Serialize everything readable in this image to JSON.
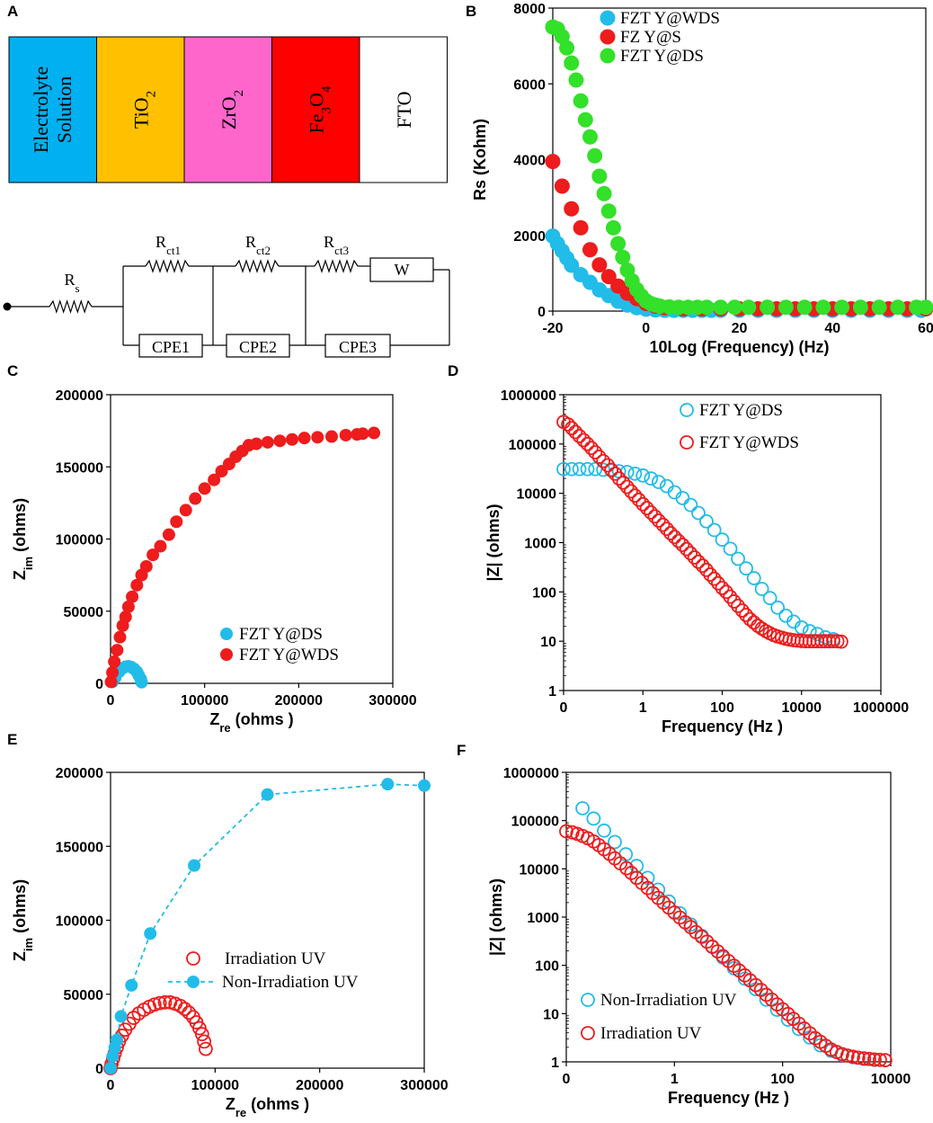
{
  "colors": {
    "blue": "#22bce9",
    "red": "#ee1c1c",
    "green": "#33e02a",
    "electrolyte": "#00b0f0",
    "tio2": "#ffc000",
    "zro2": "#ff66cc",
    "fe3o4": "#ff0000",
    "fto": "#ffffff"
  },
  "panel_labels": [
    "A",
    "B",
    "C",
    "D",
    "E",
    "F"
  ],
  "diagram": {
    "layers": [
      {
        "text": "Electrolyte Solution",
        "lines": [
          "Electrolyte",
          "Solution"
        ],
        "color": "#00b0f0"
      },
      {
        "text": "TiO2",
        "base": "TiO",
        "sub": "2",
        "color": "#ffc000"
      },
      {
        "text": "ZrO2",
        "base": "ZrO",
        "sub": "2",
        "color": "#ff66cc"
      },
      {
        "text": "Fe3O4",
        "base": "Fe",
        "sub": "3",
        "mid": "O",
        "sub2": "4",
        "color": "#ff0000"
      },
      {
        "text": "FTO",
        "base": "FTO",
        "color": "#ffffff"
      }
    ],
    "circuit": {
      "rs": {
        "base": "R",
        "sub": "s"
      },
      "rct1": {
        "base": "R",
        "sub": "ct1"
      },
      "rct2": {
        "base": "R",
        "sub": "ct2"
      },
      "rct3": {
        "base": "R",
        "sub": "ct3"
      },
      "w": "W",
      "cpe": [
        "CPE1",
        "CPE2",
        "CPE3"
      ]
    }
  },
  "chart_data": [
    {
      "id": "B",
      "type": "scatter",
      "title": "",
      "xlabel": "10Log (Frequency) (Hz)",
      "ylabel": "Rs (Kohm)",
      "xlim": [
        -20,
        60
      ],
      "ylim": [
        0,
        8000
      ],
      "xticks": [
        -20,
        0,
        20,
        40,
        60
      ],
      "yticks": [
        0,
        2000,
        4000,
        6000,
        8000
      ],
      "legend": "top-left",
      "series": [
        {
          "name": "FZT Y@WDS",
          "color": "#22bce9",
          "x": [
            -20,
            -19,
            -18,
            -17,
            -16,
            -14,
            -12,
            -10,
            -8,
            -6,
            -4,
            -2,
            0,
            2,
            4,
            6,
            8,
            10,
            12,
            14,
            16,
            20,
            24,
            28,
            32,
            36,
            40,
            44,
            48,
            52,
            56,
            59
          ],
          "y": [
            1980,
            1780,
            1590,
            1400,
            1210,
            960,
            760,
            560,
            410,
            260,
            160,
            90,
            50,
            30,
            20,
            20,
            20,
            20,
            20,
            20,
            20,
            20,
            20,
            20,
            20,
            20,
            20,
            20,
            20,
            20,
            20,
            20
          ]
        },
        {
          "name": "FZ Y@S",
          "color": "#ee1c1c",
          "x": [
            -20,
            -18,
            -16,
            -14,
            -12,
            -10,
            -8,
            -6,
            -4,
            -2,
            0,
            2,
            4,
            8,
            12,
            16,
            20,
            24,
            28,
            32,
            36,
            40,
            44,
            48,
            52,
            56,
            60
          ],
          "y": [
            3950,
            3300,
            2700,
            2200,
            1620,
            1220,
            910,
            660,
            470,
            330,
            200,
            130,
            90,
            60,
            60,
            60,
            60,
            60,
            60,
            60,
            60,
            60,
            60,
            60,
            60,
            60,
            60
          ]
        },
        {
          "name": "FZT Y@DS",
          "color": "#33e02a",
          "x": [
            -20,
            -19,
            -18,
            -17,
            -16,
            -15,
            -14,
            -13,
            -12,
            -11,
            -10,
            -9,
            -8,
            -7,
            -6,
            -5,
            -4,
            -3,
            -2,
            -1,
            0,
            1,
            2,
            3,
            5,
            7,
            9,
            11,
            13,
            16,
            19,
            22,
            26,
            30,
            34,
            38,
            42,
            46,
            50,
            54,
            58,
            60
          ],
          "y": [
            7500,
            7450,
            7250,
            6950,
            6550,
            6100,
            5550,
            5050,
            4600,
            4100,
            3560,
            3100,
            2640,
            2200,
            1780,
            1420,
            1080,
            800,
            570,
            400,
            270,
            200,
            160,
            130,
            110,
            100,
            100,
            100,
            100,
            100,
            100,
            100,
            100,
            100,
            100,
            100,
            100,
            100,
            100,
            100,
            100,
            100
          ]
        }
      ]
    },
    {
      "id": "C",
      "type": "scatter",
      "title": "",
      "xlabel": "Zre (ohms )",
      "ylabel": "Zim (ohms)",
      "xlabel_parts": [
        "Z",
        "re",
        " (ohms )"
      ],
      "ylabel_parts": [
        "Z",
        "im",
        " (ohms)"
      ],
      "xlim": [
        0,
        300000
      ],
      "ylim": [
        0,
        200000
      ],
      "xticks": [
        0,
        100000,
        200000,
        300000
      ],
      "yticks": [
        0,
        50000,
        100000,
        150000,
        200000
      ],
      "legend": "bottom-right",
      "series": [
        {
          "name": "FZT Y@DS",
          "color": "#22bce9",
          "x": [
            2000,
            5000,
            9000,
            13000,
            16000,
            19000,
            22000,
            25000,
            28000,
            30000,
            32000,
            33000
          ],
          "y": [
            1000,
            4000,
            8000,
            10500,
            11500,
            11800,
            11200,
            10000,
            8000,
            5500,
            3000,
            800
          ]
        },
        {
          "name": "FZT Y@WDS",
          "color": "#ee1c1c",
          "x": [
            500,
            2000,
            4000,
            7000,
            10000,
            13000,
            16000,
            19000,
            23000,
            28000,
            33000,
            38000,
            45000,
            53000,
            62000,
            70000,
            80000,
            90000,
            100000,
            110000,
            118000,
            126000,
            133000,
            140000,
            147000,
            155000,
            167000,
            180000,
            193000,
            206000,
            220000,
            235000,
            250000,
            262000,
            268000,
            280000
          ],
          "y": [
            1000,
            7500,
            15000,
            23000,
            32000,
            40000,
            46000,
            53000,
            60000,
            68000,
            75000,
            81000,
            89000,
            95000,
            103000,
            112000,
            120000,
            128000,
            135000,
            141000,
            147000,
            152000,
            157000,
            161000,
            165000,
            166000,
            167000,
            168000,
            169000,
            170000,
            170500,
            171000,
            172000,
            172500,
            173000,
            173500
          ]
        }
      ]
    },
    {
      "id": "D",
      "type": "scatter",
      "title": "",
      "xlabel": "Frequency (Hz )",
      "ylabel": "|Z| (ohms)",
      "xscale": "log-from-zero",
      "yscale": "log",
      "xlim": [
        0,
        1000000
      ],
      "ylim": [
        1,
        1000000
      ],
      "xticks": [
        0,
        1,
        100,
        10000,
        1000000
      ],
      "yticks": [
        1,
        10,
        100,
        1000,
        10000,
        100000,
        1000000
      ],
      "legend": "top-right",
      "series": [
        {
          "name": "FZT Y@DS",
          "color": "#22bce9",
          "x": [
            0.01,
            0.016,
            0.025,
            0.04,
            0.063,
            0.1,
            0.16,
            0.25,
            0.4,
            0.63,
            1,
            1.6,
            2.5,
            4,
            6.3,
            10,
            16,
            25,
            40,
            63,
            100,
            160,
            250,
            400,
            630,
            1000,
            1600,
            2500,
            4000,
            6300,
            10000,
            16000,
            25000,
            40000,
            63000
          ],
          "y": [
            31000,
            31000,
            31000,
            31000,
            31000,
            30000,
            29000,
            28000,
            27000,
            25000,
            23000,
            20000,
            17000,
            14000,
            10500,
            8000,
            5800,
            4000,
            2700,
            1800,
            1150,
            750,
            470,
            300,
            190,
            115,
            75,
            48,
            33,
            25,
            19,
            16,
            14,
            12,
            11
          ]
        },
        {
          "name": "FZT Y@WDS",
          "color": "#ee1c1c",
          "x": [
            0.01,
            0.013,
            0.016,
            0.02,
            0.025,
            0.032,
            0.04,
            0.05,
            0.063,
            0.079,
            0.1,
            0.13,
            0.16,
            0.2,
            0.25,
            0.32,
            0.4,
            0.5,
            0.63,
            0.79,
            1,
            1.26,
            1.58,
            2,
            2.5,
            3.2,
            4,
            5,
            6.3,
            7.9,
            10,
            12.6,
            15.8,
            20,
            25,
            32,
            40,
            50,
            63,
            79,
            100,
            126,
            158,
            200,
            250,
            320,
            400,
            500,
            630,
            790,
            1000,
            1260,
            1580,
            2000,
            2500,
            3200,
            4000,
            5000,
            6300,
            7900,
            10000,
            12600,
            15800,
            20000,
            25000,
            32000,
            40000,
            50000,
            63000,
            80000,
            100000
          ],
          "y": [
            280000,
            250000,
            210000,
            175000,
            145000,
            120000,
            100000,
            83000,
            68000,
            55000,
            45000,
            37000,
            30000,
            25000,
            20000,
            16500,
            13500,
            11000,
            9000,
            7400,
            6000,
            5000,
            4100,
            3400,
            2800,
            2300,
            1900,
            1550,
            1300,
            1080,
            900,
            740,
            610,
            500,
            410,
            340,
            280,
            225,
            185,
            150,
            120,
            100,
            80,
            64,
            52,
            42,
            34,
            28,
            24,
            20.5,
            18,
            16,
            14.5,
            13.3,
            12.5,
            11.8,
            11.2,
            10.8,
            10.5,
            10.3,
            10.1,
            10,
            10,
            10,
            10,
            10,
            10,
            10,
            10,
            10,
            9.8
          ]
        }
      ]
    },
    {
      "id": "E",
      "type": "scatter",
      "title": "",
      "xlabel": "Zre (ohms )",
      "ylabel": "Zim (ohms)",
      "xlabel_parts": [
        "Z",
        "re",
        " (ohms )"
      ],
      "ylabel_parts": [
        "Z",
        "im",
        " (ohms)"
      ],
      "xlim": [
        0,
        300000
      ],
      "ylim": [
        0,
        200000
      ],
      "xticks": [
        0,
        100000,
        200000,
        300000
      ],
      "yticks": [
        0,
        50000,
        100000,
        150000,
        200000
      ],
      "legend": "center-right",
      "series": [
        {
          "name": "Irradiation UV",
          "color": "#ee1c1c",
          "marker": "open-circle",
          "x": [
            0,
            1000,
            2500,
            4000,
            6000,
            8000,
            11000,
            14000,
            18000,
            22000,
            27000,
            32000,
            37000,
            42000,
            47000,
            52000,
            57000,
            62000,
            67000,
            71000,
            75000,
            79000,
            82000,
            85000,
            87500,
            89500,
            91000
          ],
          "y": [
            0,
            3000,
            6500,
            10000,
            14000,
            18000,
            22000,
            26000,
            30000,
            34000,
            37000,
            39500,
            41500,
            43000,
            44000,
            44500,
            44500,
            43500,
            42000,
            40000,
            37500,
            34500,
            31000,
            27000,
            23000,
            18000,
            13000
          ]
        },
        {
          "name": "Non-Irradiation UV",
          "color": "#22bce9",
          "marker": "filled-circle-dashed-line",
          "x": [
            0,
            2000,
            4000,
            6000,
            10000,
            20000,
            38000,
            80000,
            150000,
            265000,
            300000
          ],
          "y": [
            0,
            8000,
            14000,
            19000,
            35000,
            56000,
            91000,
            137000,
            185000,
            192000,
            191000
          ]
        }
      ]
    },
    {
      "id": "F",
      "type": "scatter",
      "title": "",
      "xlabel": "Frequency (Hz )",
      "ylabel": "|Z| (ohms)",
      "xscale": "log-from-zero",
      "yscale": "log",
      "xlim": [
        0,
        10000
      ],
      "ylim": [
        1,
        1000000
      ],
      "xticks": [
        0,
        1,
        100,
        10000
      ],
      "yticks": [
        1,
        10,
        100,
        1000,
        10000,
        100000,
        1000000
      ],
      "legend": "bottom-left",
      "series": [
        {
          "name": "Non-Irradiation UV",
          "color": "#22bce9",
          "x": [
            0.02,
            0.032,
            0.05,
            0.079,
            0.126,
            0.2,
            0.32,
            0.5,
            0.79,
            1.26,
            2,
            3.2,
            5,
            7.9,
            12.6,
            20,
            32,
            50,
            79,
            126,
            200,
            320,
            500,
            790,
            1260,
            2000,
            3200,
            5000
          ],
          "y": [
            180000,
            110000,
            62000,
            36000,
            20000,
            11500,
            6500,
            3700,
            2100,
            1200,
            700,
            410,
            240,
            145,
            87,
            53,
            32,
            19.5,
            12,
            7.5,
            4.8,
            3.2,
            2.2,
            1.7,
            1.4,
            1.25,
            1.15,
            1.1
          ]
        },
        {
          "name": "Irradiation UV",
          "color": "#ee1c1c",
          "x": [
            0.01,
            0.013,
            0.016,
            0.02,
            0.025,
            0.032,
            0.04,
            0.05,
            0.063,
            0.079,
            0.1,
            0.13,
            0.16,
            0.2,
            0.25,
            0.32,
            0.4,
            0.5,
            0.63,
            0.79,
            1,
            1.26,
            1.58,
            2,
            2.5,
            3.2,
            4,
            5,
            6.3,
            7.9,
            10,
            12.6,
            15.8,
            20,
            25,
            32,
            40,
            50,
            63,
            79,
            100,
            126,
            158,
            200,
            250,
            320,
            400,
            500,
            630,
            790,
            1000,
            1260,
            1580,
            2000,
            2500,
            3200,
            4000,
            5000,
            6300,
            7900
          ],
          "y": [
            60000,
            57000,
            53000,
            48000,
            43000,
            37000,
            31000,
            25500,
            20500,
            16500,
            13000,
            10300,
            8200,
            6500,
            5100,
            4000,
            3150,
            2500,
            1980,
            1570,
            1240,
            980,
            780,
            620,
            490,
            390,
            310,
            245,
            195,
            155,
            123,
            98,
            78,
            62,
            49,
            39,
            31,
            24.5,
            19.5,
            15.5,
            12.3,
            9.8,
            7.8,
            6.2,
            4.9,
            3.9,
            3.1,
            2.6,
            2.15,
            1.8,
            1.6,
            1.45,
            1.35,
            1.28,
            1.22,
            1.18,
            1.15,
            1.12,
            1.1,
            1.08
          ]
        }
      ]
    }
  ]
}
